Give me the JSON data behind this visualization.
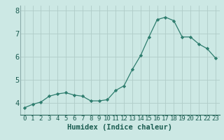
{
  "x": [
    0,
    1,
    2,
    3,
    4,
    5,
    6,
    7,
    8,
    9,
    10,
    11,
    12,
    13,
    14,
    15,
    16,
    17,
    18,
    19,
    20,
    21,
    22,
    23
  ],
  "y": [
    3.8,
    3.95,
    4.05,
    4.3,
    4.4,
    4.45,
    4.35,
    4.3,
    4.1,
    4.1,
    4.15,
    4.55,
    4.75,
    5.45,
    6.05,
    6.85,
    7.6,
    7.7,
    7.55,
    6.85,
    6.85,
    6.55,
    6.35,
    5.95
  ],
  "xlabel": "Humidex (Indice chaleur)",
  "ylabel": "",
  "ylim": [
    3.5,
    8.2
  ],
  "xlim": [
    -0.5,
    23.5
  ],
  "yticks": [
    4,
    5,
    6,
    7,
    8
  ],
  "xticks": [
    0,
    1,
    2,
    3,
    4,
    5,
    6,
    7,
    8,
    9,
    10,
    11,
    12,
    13,
    14,
    15,
    16,
    17,
    18,
    19,
    20,
    21,
    22,
    23
  ],
  "line_color": "#2e7d6e",
  "marker_color": "#2e7d6e",
  "bg_color": "#cce8e4",
  "grid_color": "#b0ccc8",
  "tick_label_color": "#1a5c50",
  "axis_label_color": "#1a5c50",
  "font_size_ticks": 6.5,
  "font_size_xlabel": 7.5
}
